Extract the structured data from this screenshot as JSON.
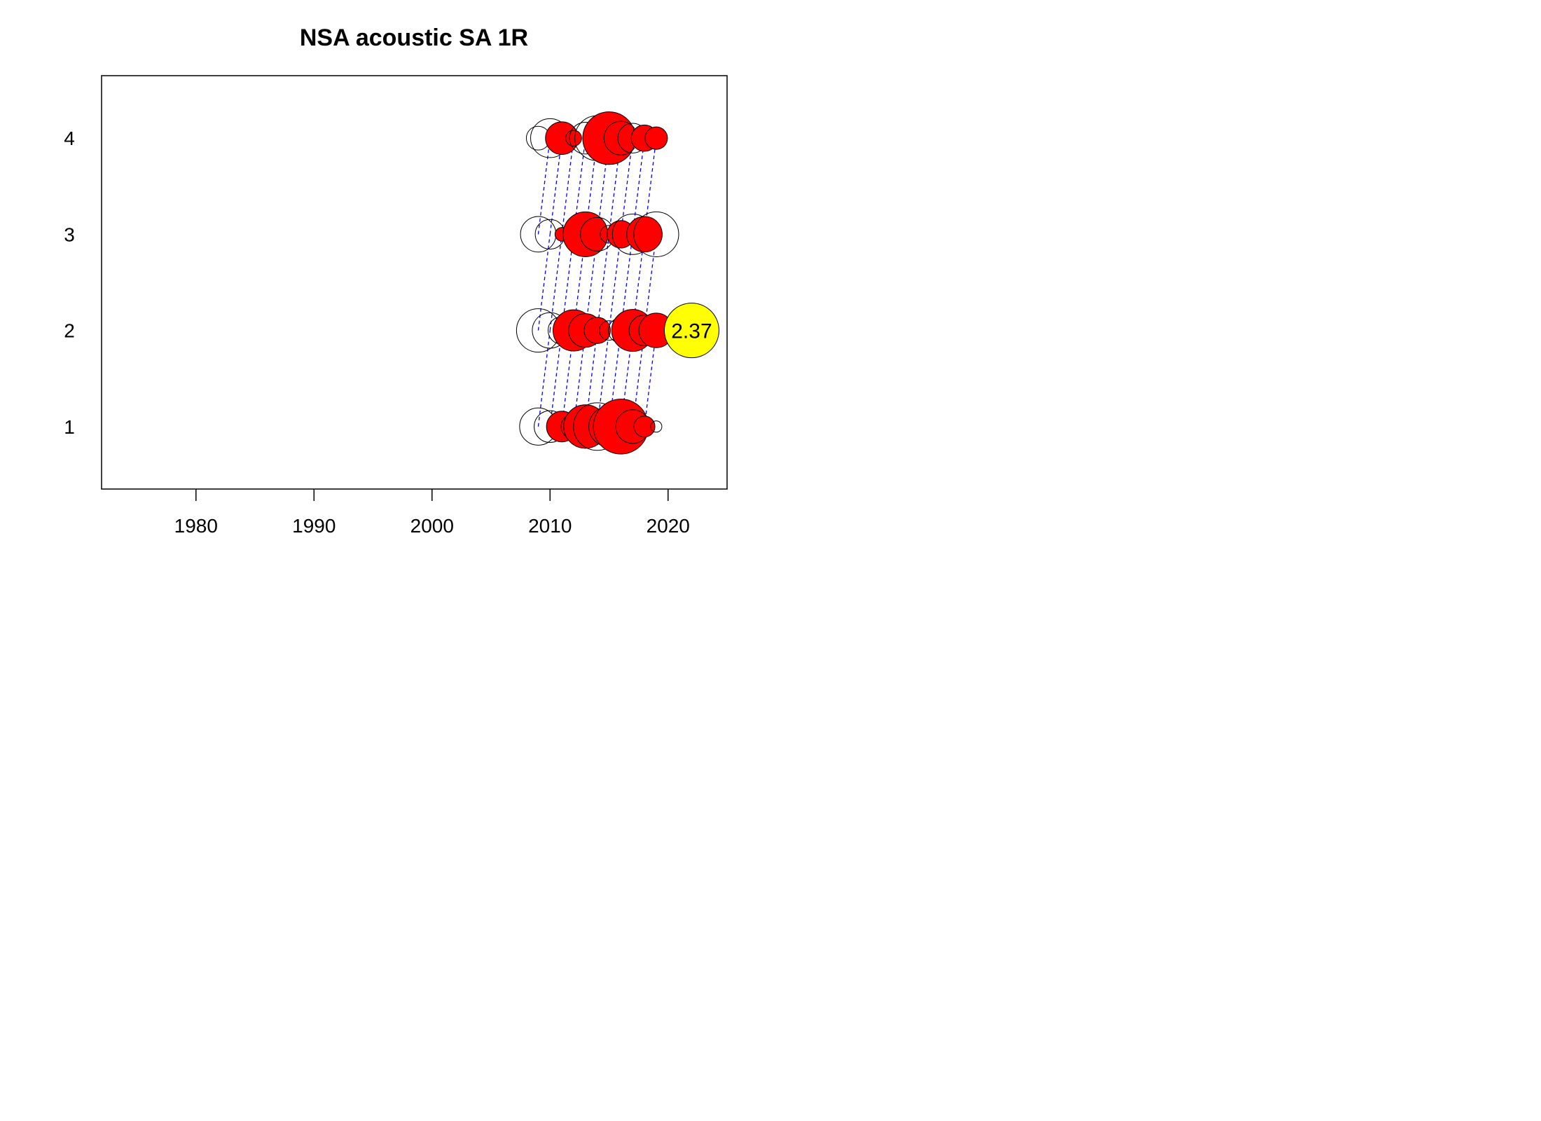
{
  "chart_data": {
    "type": "scatter",
    "title": "NSA  acoustic SA 1R",
    "xlabel": "",
    "ylabel": "",
    "xlim": [
      1972,
      2025
    ],
    "ylim": [
      0.35,
      4.65
    ],
    "x_ticks": [
      1980,
      1990,
      2000,
      2010,
      2020
    ],
    "y_ticks": [
      1,
      2,
      3,
      4
    ],
    "grid": false,
    "legend": "none",
    "colors": {
      "positive": "#ff0000",
      "negative_outline": "#000000",
      "cohort_line": "#0000ff",
      "reference": "#ffff00"
    },
    "reference_bubble": {
      "x": 2022,
      "y": 2,
      "value": 2.37,
      "label": "2.37"
    },
    "residuals": [
      {
        "age": 1,
        "points": [
          {
            "year": 2009,
            "value": -1.1
          },
          {
            "year": 2010,
            "value": -0.8
          },
          {
            "year": 2011,
            "value": 0.75
          },
          {
            "year": 2012,
            "value": -0.5
          },
          {
            "year": 2013,
            "value": 1.5
          },
          {
            "year": 2014,
            "value": -1.8
          },
          {
            "year": 2015,
            "value": -1.3
          },
          {
            "year": 2016,
            "value": 2.4
          },
          {
            "year": 2017,
            "value": -0.9
          },
          {
            "year": 2018,
            "value": 0.35
          },
          {
            "year": 2019,
            "value": -0.1
          }
        ]
      },
      {
        "age": 2,
        "points": [
          {
            "year": 2009,
            "value": -1.5
          },
          {
            "year": 2010,
            "value": -1.0
          },
          {
            "year": 2011,
            "value": -0.6
          },
          {
            "year": 2012,
            "value": 1.35
          },
          {
            "year": 2013,
            "value": 0.9
          },
          {
            "year": 2014,
            "value": 0.55
          },
          {
            "year": 2015,
            "value": -0.3
          },
          {
            "year": 2016,
            "value": -0.5
          },
          {
            "year": 2017,
            "value": 1.4
          },
          {
            "year": 2018,
            "value": 0.75
          },
          {
            "year": 2019,
            "value": 0.95
          }
        ]
      },
      {
        "age": 3,
        "points": [
          {
            "year": 2009,
            "value": -1.0
          },
          {
            "year": 2010,
            "value": -0.7
          },
          {
            "year": 2011,
            "value": 0.15
          },
          {
            "year": 2012,
            "value": 0.35
          },
          {
            "year": 2013,
            "value": 1.6
          },
          {
            "year": 2014,
            "value": -0.9
          },
          {
            "year": 2015,
            "value": -0.25
          },
          {
            "year": 2016,
            "value": 0.6
          },
          {
            "year": 2017,
            "value": -1.3
          },
          {
            "year": 2018,
            "value": 1.0
          },
          {
            "year": 2019,
            "value": -1.6
          }
        ]
      },
      {
        "age": 4,
        "points": [
          {
            "year": 2009,
            "value": -0.45
          },
          {
            "year": 2010,
            "value": -1.2
          },
          {
            "year": 2011,
            "value": 0.85
          },
          {
            "year": 2012,
            "value": 0.2
          },
          {
            "year": 2013,
            "value": -0.8
          },
          {
            "year": 2014,
            "value": -1.6
          },
          {
            "year": 2015,
            "value": 2.2
          },
          {
            "year": 2016,
            "value": -0.9
          },
          {
            "year": 2017,
            "value": -0.7
          },
          {
            "year": 2018,
            "value": 0.55
          },
          {
            "year": 2019,
            "value": 0.4
          }
        ]
      }
    ]
  }
}
